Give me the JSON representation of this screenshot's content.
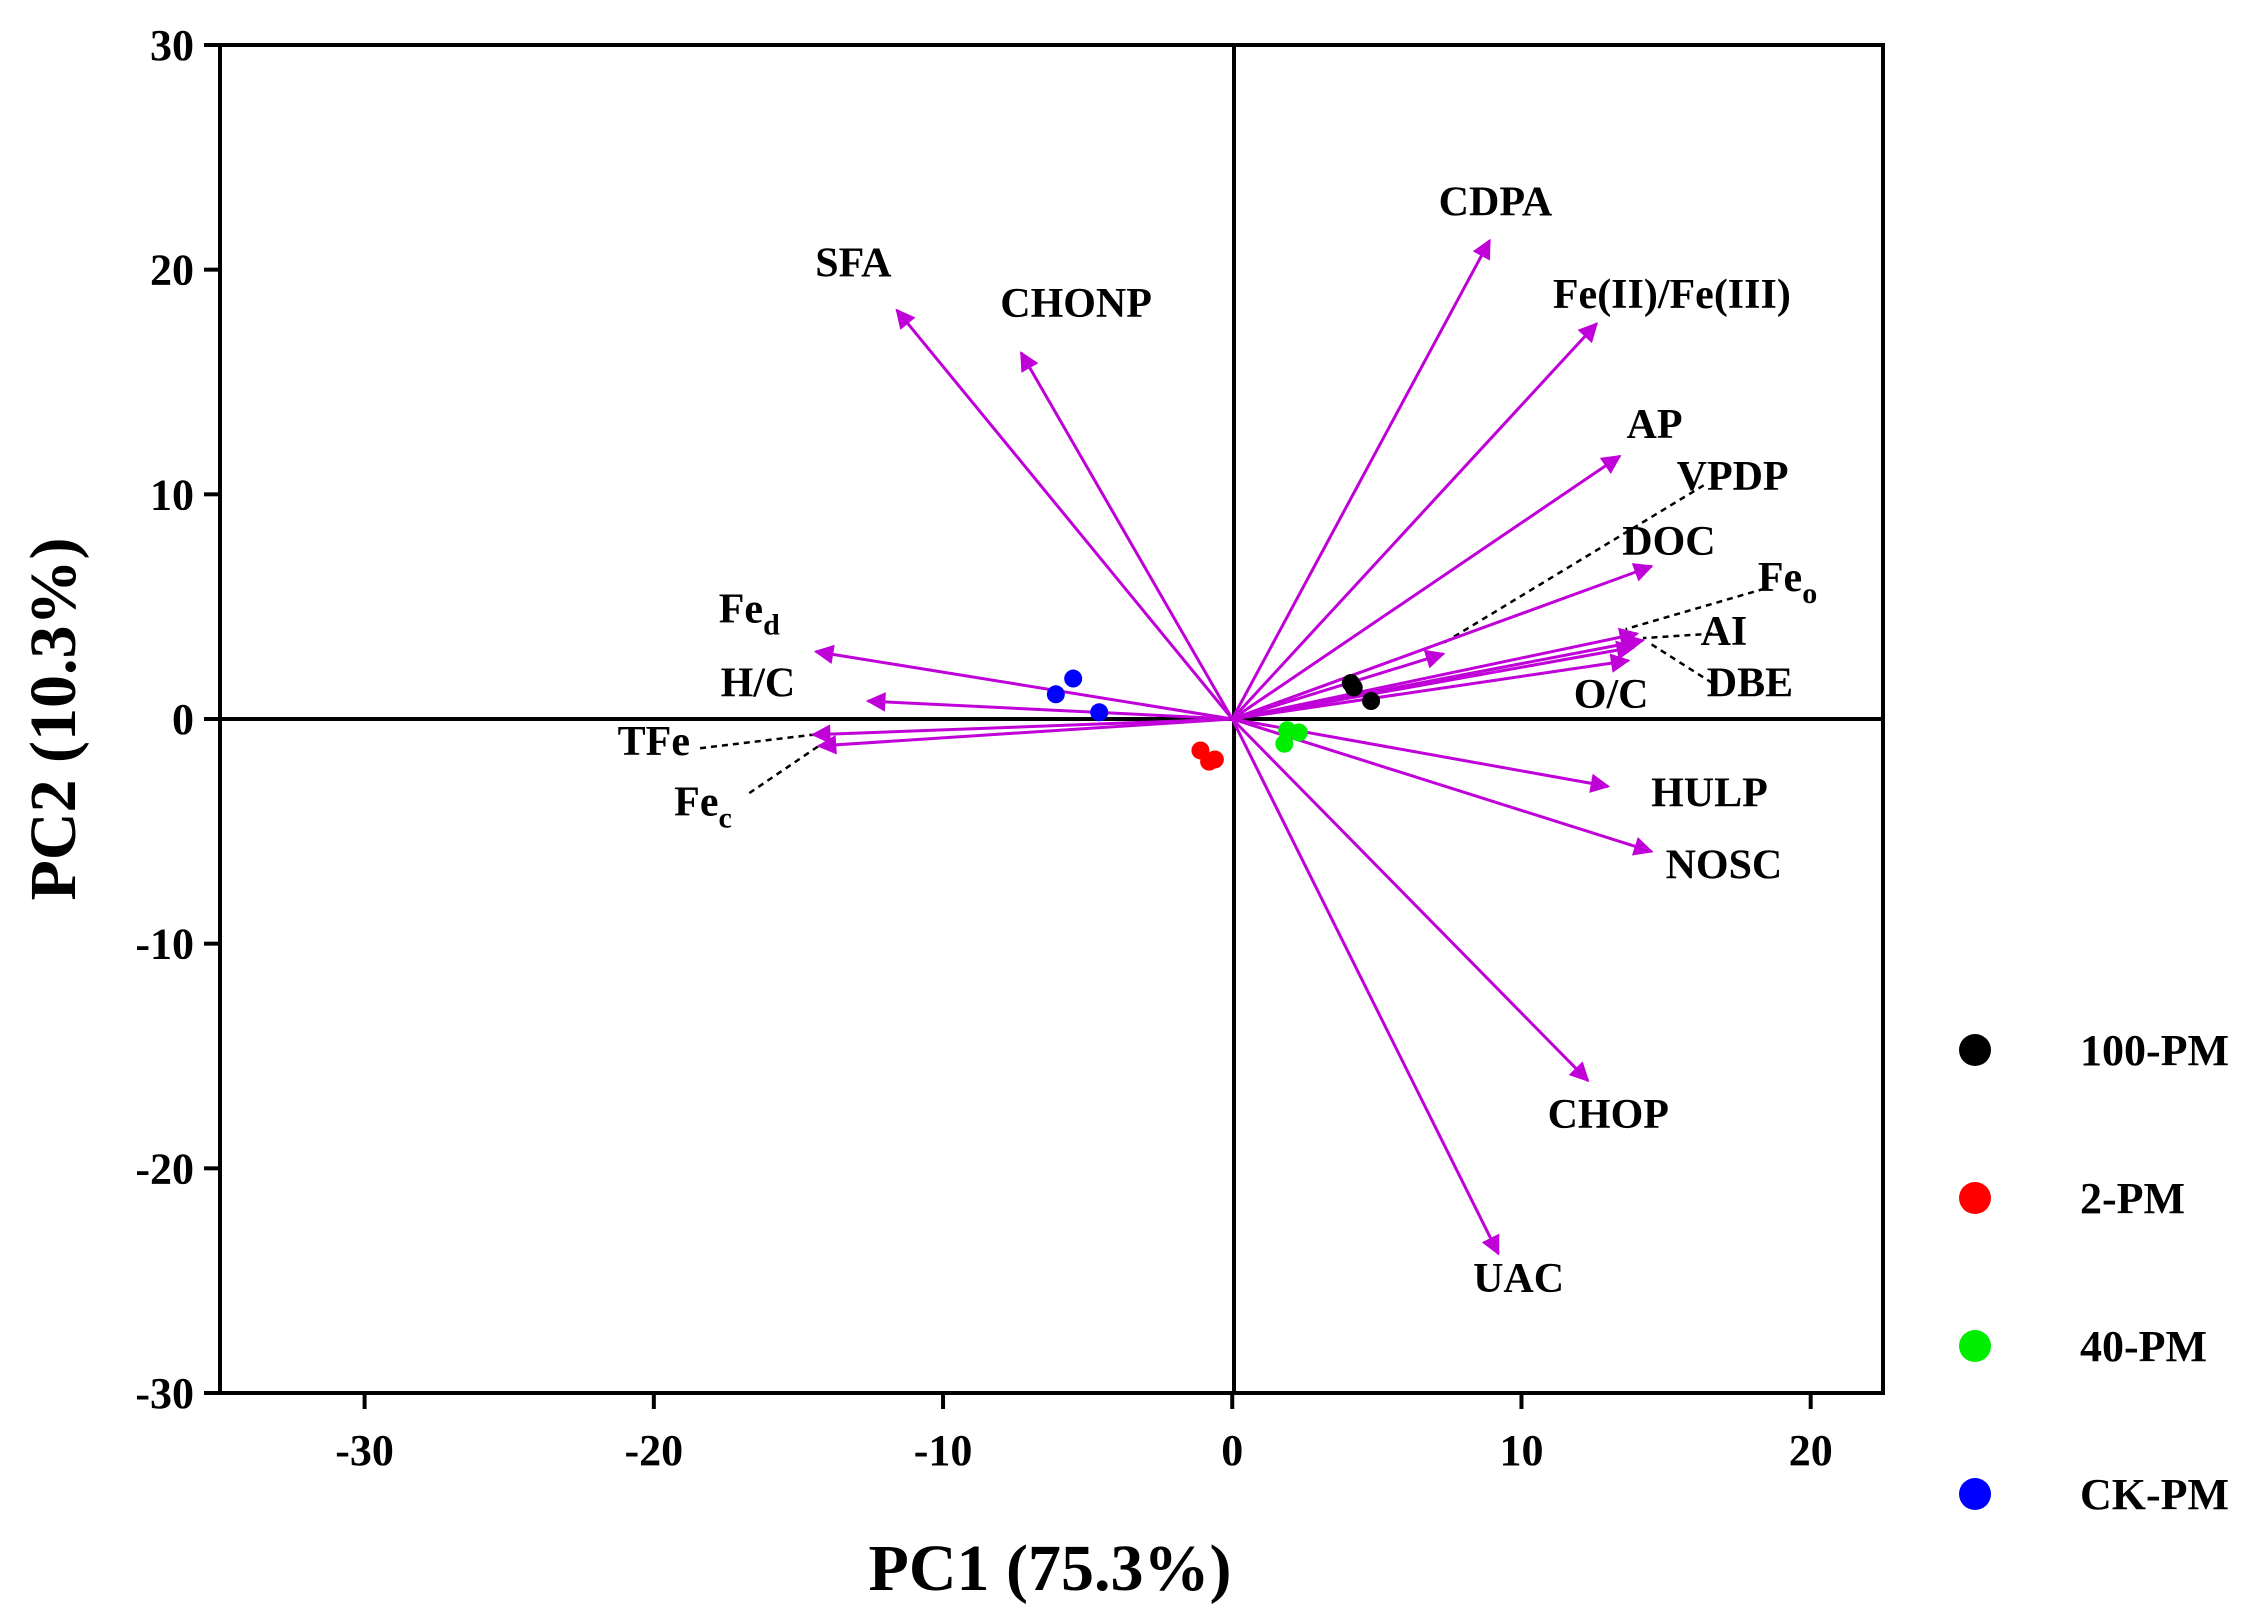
{
  "chart_data": {
    "type": "biplot",
    "xlabel": "PC1 (75.3%)",
    "ylabel": "PC2 (10.3%)",
    "xlim": [
      -35,
      22.5
    ],
    "ylim": [
      -30,
      30
    ],
    "xticks": [
      -30,
      -20,
      -10,
      0,
      10,
      20
    ],
    "yticks": [
      -30,
      -20,
      -10,
      0,
      10,
      20,
      30
    ],
    "vector_color": "#c000d8",
    "loadings": [
      {
        "name": "SFA",
        "x": -11.6,
        "y": 18.2
      },
      {
        "name": "CHONP",
        "x": -7.3,
        "y": 16.3
      },
      {
        "name": "CDPA",
        "x": 8.9,
        "y": 21.3
      },
      {
        "name": "Fe(II)/Fe(III)",
        "x": 12.6,
        "y": 17.6
      },
      {
        "name": "AP",
        "x": 13.4,
        "y": 11.7
      },
      {
        "name": "VPDP",
        "x": 7.3,
        "y": 2.9
      },
      {
        "name": "DOC",
        "x": 14.5,
        "y": 6.8
      },
      {
        "name": "Feo",
        "x": 14.0,
        "y": 3.8
      },
      {
        "name": "AI",
        "x": 14.2,
        "y": 3.5
      },
      {
        "name": "DBE",
        "x": 13.9,
        "y": 3.2
      },
      {
        "name": "O/C",
        "x": 13.7,
        "y": 2.6
      },
      {
        "name": "HULP",
        "x": 13.0,
        "y": -3.0
      },
      {
        "name": "NOSC",
        "x": 14.5,
        "y": -5.9
      },
      {
        "name": "CHOP",
        "x": 12.3,
        "y": -16.1
      },
      {
        "name": "UAC",
        "x": 9.2,
        "y": -23.8
      },
      {
        "name": "Fed",
        "x": -14.4,
        "y": 3.0
      },
      {
        "name": "H/C",
        "x": -12.6,
        "y": 0.8
      },
      {
        "name": "TFe",
        "x": -14.5,
        "y": -0.7
      },
      {
        "name": "Fec",
        "x": -14.3,
        "y": -1.2
      }
    ],
    "labels": [
      {
        "key": "SFA",
        "text": "SFA",
        "sub": "",
        "x": -13.1,
        "y": 19.7
      },
      {
        "key": "CHONP",
        "text": "CHONP",
        "sub": "",
        "x": -5.4,
        "y": 17.9
      },
      {
        "key": "CDPA",
        "text": "CDPA",
        "sub": "",
        "x": 9.1,
        "y": 22.4
      },
      {
        "key": "Fe(II)/Fe(III)",
        "text": "Fe(II)/Fe(III)",
        "sub": "",
        "x": 15.2,
        "y": 18.3
      },
      {
        "key": "AP",
        "text": "AP",
        "sub": "",
        "x": 14.6,
        "y": 12.5
      },
      {
        "key": "VPDP",
        "text": "VPDP",
        "sub": "",
        "x": 17.3,
        "y": 10.2
      },
      {
        "key": "DOC",
        "text": "DOC",
        "sub": "",
        "x": 15.1,
        "y": 7.3
      },
      {
        "key": "Feo",
        "text": "Fe",
        "sub": "o",
        "x": 19.2,
        "y": 5.7
      },
      {
        "key": "AI",
        "text": "AI",
        "sub": "",
        "x": 17.0,
        "y": 3.3
      },
      {
        "key": "DBE",
        "text": "DBE",
        "sub": "",
        "x": 17.9,
        "y": 1.0
      },
      {
        "key": "O/C",
        "text": "O/C",
        "sub": "",
        "x": 13.1,
        "y": 0.5
      },
      {
        "key": "HULP",
        "text": "HULP",
        "sub": "",
        "x": 16.5,
        "y": -3.9
      },
      {
        "key": "NOSC",
        "text": "NOSC",
        "sub": "",
        "x": 17.0,
        "y": -7.1
      },
      {
        "key": "CHOP",
        "text": "CHOP",
        "sub": "",
        "x": 13.0,
        "y": -18.2
      },
      {
        "key": "UAC",
        "text": "UAC",
        "sub": "",
        "x": 9.9,
        "y": -25.5
      },
      {
        "key": "Fed",
        "text": "Fe",
        "sub": "d",
        "x": -16.7,
        "y": 4.3
      },
      {
        "key": "H/C",
        "text": "H/C",
        "sub": "",
        "x": -16.4,
        "y": 1.0
      },
      {
        "key": "TFe",
        "text": "TFe",
        "sub": "",
        "x": -20.0,
        "y": -1.6
      },
      {
        "key": "Fec",
        "text": "Fe",
        "sub": "c",
        "x": -18.3,
        "y": -4.3
      }
    ],
    "leaders": [
      {
        "from": [
          16.3,
          10.4
        ],
        "to": [
          7.2,
          3.3
        ]
      },
      {
        "from": [
          18.4,
          5.8
        ],
        "to": [
          13.6,
          4.0
        ]
      },
      {
        "from": [
          16.6,
          3.8
        ],
        "to": [
          14.2,
          3.6
        ]
      },
      {
        "from": [
          16.6,
          1.6
        ],
        "to": [
          14.4,
          3.4
        ]
      },
      {
        "from": [
          -18.4,
          -1.3
        ],
        "to": [
          -14.5,
          -0.7
        ]
      },
      {
        "from": [
          -16.7,
          -3.3
        ],
        "to": [
          -14.3,
          -1.2
        ]
      }
    ],
    "groups": [
      {
        "name": "100-PM",
        "color": "#000000",
        "points": [
          [
            4.1,
            1.6
          ],
          [
            4.2,
            1.4
          ],
          [
            4.8,
            0.8
          ]
        ]
      },
      {
        "name": "2-PM",
        "color": "#ff0000",
        "points": [
          [
            -1.1,
            -1.4
          ],
          [
            -0.8,
            -1.9
          ],
          [
            -0.6,
            -1.8
          ]
        ]
      },
      {
        "name": "40-PM",
        "color": "#00ee00",
        "points": [
          [
            1.8,
            -1.1
          ],
          [
            2.3,
            -0.6
          ],
          [
            1.9,
            -0.5
          ]
        ]
      },
      {
        "name": "CK-PM",
        "color": "#0000ff",
        "points": [
          [
            -5.5,
            1.8
          ],
          [
            -6.1,
            1.1
          ],
          [
            -4.6,
            0.3
          ]
        ]
      }
    ]
  }
}
